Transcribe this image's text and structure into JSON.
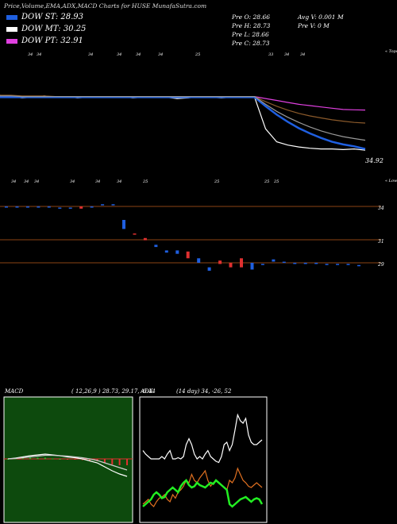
{
  "header": "Price,Volume,EMA,ADX,MACD Charts for HUSE MunafaSutra.com",
  "legend": [
    {
      "label": "DOW ST: 28.93",
      "color": "#1f5fe0"
    },
    {
      "label": "DOW MT: 30.25",
      "color": "#ffffff"
    },
    {
      "label": "DOW PT: 32.91",
      "color": "#e040e0"
    }
  ],
  "ohlc": {
    "open": "Pre   O: 28.66",
    "high": "Pre   H: 28.73",
    "low": "Pre   L: 28.66",
    "close": "Pre   C: 28.73",
    "avg_vol": "Avg V: 0.001 M",
    "vol": "Pre   V: 0   M"
  },
  "chart_data": [
    {
      "type": "line",
      "name": "price-ema",
      "top_label": "« Tops",
      "bottom_label": "« Lows",
      "last_price": "34.92",
      "top_markers": [
        "34",
        "34",
        "34",
        "34",
        "34",
        "34",
        "25",
        "33",
        "34",
        "34"
      ],
      "low_markers": [
        "34",
        "34",
        "34",
        "34",
        "34",
        "34",
        "25",
        "25",
        "25",
        "25"
      ],
      "series": [
        {
          "color": "#ffffff",
          "values": [
            37.2,
            37.0,
            36.8,
            36.9,
            37.1,
            36.9,
            37.0,
            36.8,
            36.9,
            37.0,
            36.9,
            37.0,
            36.8,
            36.9,
            37.0,
            36.9,
            36.7,
            36.8,
            37.0,
            36.9,
            36.8,
            36.9,
            37.0,
            36.9,
            32.0,
            30.0,
            29.5,
            29.2,
            29.0,
            28.9,
            28.9,
            28.8,
            28.9,
            28.7
          ]
        },
        {
          "color": "#e040e0",
          "values": [
            37.0,
            37.0,
            37.0,
            37.0,
            37.0,
            37.0,
            37.0,
            37.0,
            37.0,
            37.0,
            37.0,
            37.0,
            37.0,
            37.0,
            37.0,
            37.0,
            37.0,
            37.0,
            37.0,
            37.0,
            37.0,
            37.0,
            37.0,
            37.0,
            36.7,
            36.4,
            36.1,
            35.8,
            35.6,
            35.4,
            35.2,
            35.0,
            34.95,
            34.92
          ]
        },
        {
          "color": "#8b5a2b",
          "values": [
            37.2,
            37.2,
            37.1,
            37.1,
            37.1,
            37.0,
            37.0,
            37.0,
            37.0,
            37.0,
            37.0,
            37.0,
            37.0,
            37.0,
            37.0,
            37.0,
            37.0,
            37.0,
            37.0,
            37.0,
            37.0,
            37.0,
            37.0,
            37.0,
            36.2,
            35.5,
            34.9,
            34.4,
            34.0,
            33.7,
            33.4,
            33.2,
            33.0,
            32.9
          ]
        },
        {
          "color": "#1f5fe0",
          "values": [
            36.9,
            36.9,
            36.9,
            36.9,
            36.9,
            36.9,
            36.9,
            36.9,
            36.9,
            36.9,
            36.9,
            36.9,
            36.9,
            36.9,
            36.9,
            36.9,
            36.9,
            36.9,
            36.9,
            36.9,
            36.9,
            36.9,
            36.9,
            36.9,
            35.5,
            34.2,
            33.1,
            32.1,
            31.3,
            30.6,
            30.0,
            29.6,
            29.3,
            28.9
          ]
        },
        {
          "color": "#999999",
          "values": [
            37.1,
            37.1,
            37.0,
            37.0,
            37.0,
            37.0,
            37.0,
            37.0,
            37.0,
            37.0,
            37.0,
            37.0,
            37.0,
            37.0,
            37.0,
            37.0,
            37.0,
            37.0,
            37.0,
            37.0,
            37.0,
            37.0,
            37.0,
            37.0,
            35.8,
            34.7,
            33.8,
            33.0,
            32.3,
            31.7,
            31.2,
            30.8,
            30.5,
            30.25
          ]
        }
      ]
    },
    {
      "type": "bar",
      "name": "price-levels",
      "levels": [
        "34",
        "31",
        "29"
      ],
      "candles": [
        {
          "o": 34.0,
          "c": 34.0,
          "col": "#1f5fe0"
        },
        {
          "o": 34.0,
          "c": 34.0,
          "col": "#1f5fe0"
        },
        {
          "o": 34.0,
          "c": 34.0,
          "col": "#1f5fe0"
        },
        {
          "o": 34.0,
          "c": 34.0,
          "col": "#1f5fe0"
        },
        {
          "o": 34.0,
          "c": 34.0,
          "col": "#1f5fe0"
        },
        {
          "o": 33.8,
          "c": 33.9,
          "col": "#1f5fe0"
        },
        {
          "o": 33.8,
          "c": 33.9,
          "col": "#1f5fe0"
        },
        {
          "o": 34.0,
          "c": 33.8,
          "col": "#e03030"
        },
        {
          "o": 34.0,
          "c": 34.0,
          "col": "#1f5fe0"
        },
        {
          "o": 34.1,
          "c": 34.2,
          "col": "#1f5fe0"
        },
        {
          "o": 34.1,
          "c": 34.2,
          "col": "#1f5fe0"
        },
        {
          "o": 32.0,
          "c": 32.8,
          "col": "#1f5fe0"
        },
        {
          "o": 31.6,
          "c": 31.5,
          "col": "#e03030"
        },
        {
          "o": 31.2,
          "c": 31.0,
          "col": "#e03030"
        },
        {
          "o": 30.6,
          "c": 30.4,
          "col": "#1f5fe0"
        },
        {
          "o": 29.9,
          "c": 30.1,
          "col": "#1f5fe0"
        },
        {
          "o": 30.1,
          "c": 29.8,
          "col": "#1f5fe0"
        },
        {
          "o": 30.0,
          "c": 29.4,
          "col": "#e03030"
        },
        {
          "o": 29.4,
          "c": 29.0,
          "col": "#1f5fe0"
        },
        {
          "o": 28.6,
          "c": 28.3,
          "col": "#1f5fe0"
        },
        {
          "o": 29.2,
          "c": 28.9,
          "col": "#e03030"
        },
        {
          "o": 29.0,
          "c": 28.6,
          "col": "#e03030"
        },
        {
          "o": 29.4,
          "c": 28.6,
          "col": "#e03030"
        },
        {
          "o": 29.0,
          "c": 28.4,
          "col": "#1f5fe0"
        },
        {
          "o": 28.8,
          "c": 28.9,
          "col": "#1f5fe0"
        },
        {
          "o": 29.1,
          "c": 29.3,
          "col": "#1f5fe0"
        },
        {
          "o": 29.0,
          "c": 29.1,
          "col": "#1f5fe0"
        },
        {
          "o": 29.0,
          "c": 29.0,
          "col": "#1f5fe0"
        },
        {
          "o": 28.9,
          "c": 29.0,
          "col": "#1f5fe0"
        },
        {
          "o": 28.9,
          "c": 29.0,
          "col": "#1f5fe0"
        },
        {
          "o": 28.9,
          "c": 28.9,
          "col": "#1f5fe0"
        },
        {
          "o": 28.8,
          "c": 28.9,
          "col": "#1f5fe0"
        },
        {
          "o": 28.8,
          "c": 28.9,
          "col": "#1f5fe0"
        },
        {
          "o": 28.7,
          "c": 28.8,
          "col": "#1f5fe0"
        }
      ]
    },
    {
      "type": "line",
      "name": "macd",
      "label": "MACD",
      "params": "( 12,26,9 ) 28.73, 29.17, -0.44",
      "series": [
        {
          "color": "#ffffff",
          "values": [
            0.0,
            0.02,
            0.05,
            0.08,
            0.1,
            0.12,
            0.1,
            0.08,
            0.05,
            0.03,
            0.0,
            -0.05,
            -0.1,
            -0.2,
            -0.3,
            -0.38,
            -0.44
          ]
        },
        {
          "color": "#cccccc",
          "values": [
            0.0,
            0.01,
            0.03,
            0.05,
            0.07,
            0.09,
            0.09,
            0.08,
            0.07,
            0.05,
            0.03,
            0.0,
            -0.04,
            -0.1,
            -0.16,
            -0.22,
            -0.28
          ]
        }
      ],
      "hist_color_pos": "#22cc22",
      "hist_color_neg": "#e03030"
    },
    {
      "type": "line",
      "name": "adx",
      "label": "ADX",
      "params": "(14 day) 34, -26, 52",
      "series": [
        {
          "color": "#ffffff",
          "values": [
            55,
            52,
            50,
            48,
            48,
            48,
            48,
            50,
            48,
            52,
            55,
            48,
            48,
            49,
            48,
            50,
            60,
            65,
            60,
            52,
            48,
            50,
            48,
            52,
            55,
            50,
            48,
            46,
            45,
            50,
            60,
            62,
            55,
            60,
            72,
            85,
            80,
            78,
            82,
            68,
            62,
            60,
            60,
            62,
            64
          ]
        },
        {
          "color": "#e07020",
          "values": [
            10,
            12,
            14,
            10,
            8,
            12,
            15,
            16,
            18,
            14,
            12,
            18,
            15,
            20,
            22,
            25,
            30,
            28,
            35,
            30,
            28,
            32,
            35,
            38,
            30,
            25,
            28,
            30,
            28,
            26,
            24,
            22,
            30,
            28,
            32,
            40,
            35,
            30,
            28,
            25,
            24,
            26,
            28,
            26,
            24
          ]
        },
        {
          "color": "#22ee22",
          "values": [
            8,
            10,
            12,
            14,
            18,
            20,
            18,
            15,
            16,
            20,
            22,
            24,
            22,
            20,
            25,
            28,
            30,
            26,
            24,
            25,
            28,
            26,
            25,
            24,
            26,
            28,
            27,
            30,
            28,
            26,
            24,
            22,
            10,
            8,
            10,
            12,
            14,
            15,
            16,
            14,
            12,
            14,
            15,
            14,
            10
          ]
        }
      ]
    }
  ]
}
